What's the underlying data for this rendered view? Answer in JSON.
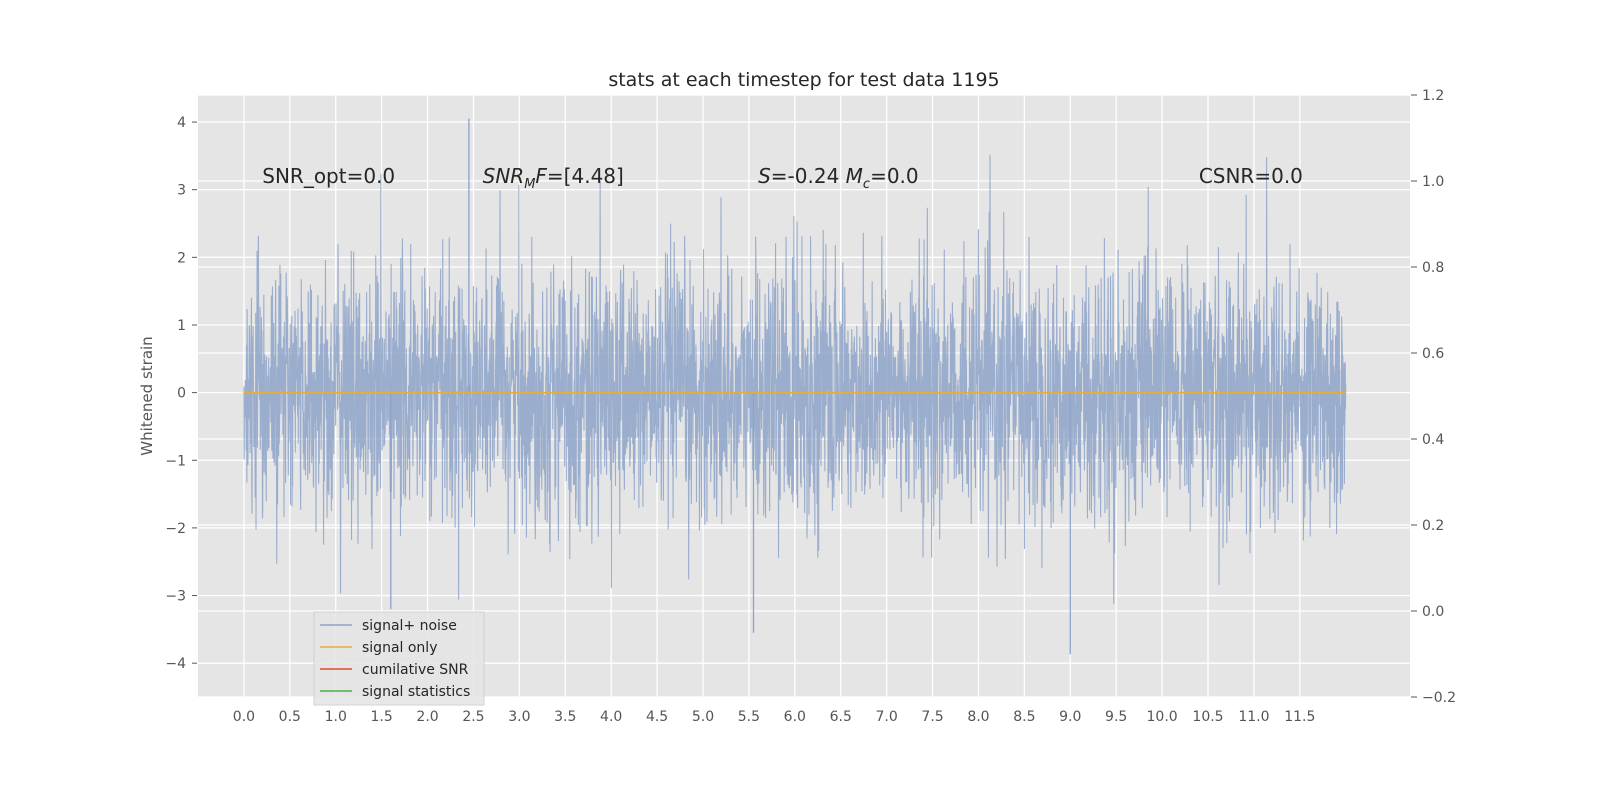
{
  "chart_data": {
    "type": "line",
    "title": "stats at each timestep for test data 1195",
    "ylabel": "Whitened strain",
    "xlabel": "",
    "xlim": [
      -0.5,
      12.7
    ],
    "ylim": [
      -4.5,
      4.4
    ],
    "y2lim": [
      -0.2,
      1.2
    ],
    "x_ticks": [
      0.0,
      0.5,
      1.0,
      1.5,
      2.0,
      2.5,
      3.0,
      3.5,
      4.0,
      4.5,
      5.0,
      5.5,
      6.0,
      6.5,
      7.0,
      7.5,
      8.0,
      8.5,
      9.0,
      9.5,
      10.0,
      10.5,
      11.0,
      11.5
    ],
    "x_tick_labels": [
      "0.0",
      "0.5",
      "1.0",
      "1.5",
      "2.0",
      "2.5",
      "3.0",
      "3.5",
      "4.0",
      "4.5",
      "5.0",
      "5.5",
      "6.0",
      "6.5",
      "7.0",
      "7.5",
      "8.0",
      "8.5",
      "9.0",
      "9.5",
      "10.0",
      "10.5",
      "11.0",
      "11.5"
    ],
    "y_ticks": [
      -4,
      -3,
      -2,
      -1,
      0,
      1,
      2,
      3,
      4
    ],
    "y_tick_labels": [
      "−4",
      "−3",
      "−2",
      "−1",
      "0",
      "1",
      "2",
      "3",
      "4"
    ],
    "y2_ticks": [
      -0.2,
      0.0,
      0.2,
      0.4,
      0.6,
      0.8,
      1.0,
      1.2
    ],
    "y2_tick_labels": [
      "−0.2",
      "0.0",
      "0.2",
      "0.4",
      "0.6",
      "0.8",
      "1.0",
      "1.2"
    ],
    "grid": true,
    "legend_position": "lower-left",
    "series": [
      {
        "name": "signal+ noise",
        "color": "#8da3c9",
        "x_range": [
          0.0,
          12.0
        ],
        "y_range": [
          -3.9,
          4.05
        ],
        "note_values": "dense noise trace, approximately normal with std ~0.9",
        "peaks": [
          {
            "x": 2.45,
            "y": 4.05
          },
          {
            "x": 9.0,
            "y": -3.87
          },
          {
            "x": 1.6,
            "y": -3.2
          },
          {
            "x": 5.55,
            "y": -3.55
          }
        ]
      },
      {
        "name": "signal only",
        "color": "#e5ae38",
        "x": [
          0.0,
          12.0
        ],
        "y": [
          0.0,
          0.0
        ]
      },
      {
        "name": "cumilative SNR",
        "color": "#e24a33",
        "x": [],
        "y": []
      },
      {
        "name": "signal statistics",
        "color": "#4daf4a",
        "x": [],
        "y": []
      }
    ],
    "annotations": [
      {
        "id": "snr_opt",
        "text": "SNR_opt=0.0",
        "x": 0.2
      },
      {
        "id": "snr_mf",
        "text_pre": "SNR",
        "text_sub": "M",
        "text_post": "F=[4.48]",
        "x": 2.6
      },
      {
        "id": "s_mc",
        "text_pre": "S",
        "text_mid": "=-0.24 ",
        "text_mc": "M",
        "text_sub": "c",
        "text_post": "=0.0",
        "x": 5.6
      },
      {
        "id": "csnr",
        "text": "CSNR=0.0",
        "x": 10.4
      }
    ],
    "annotation_y": 3.2
  }
}
